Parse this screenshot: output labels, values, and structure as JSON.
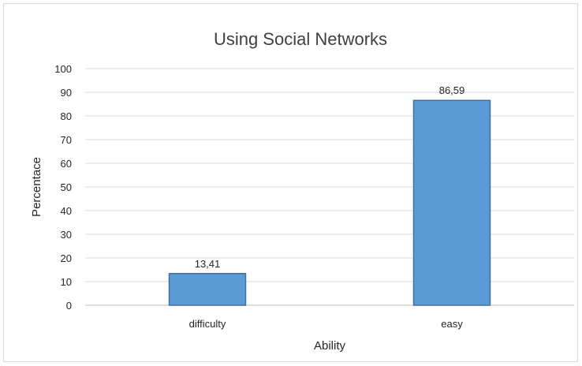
{
  "chart_data": {
    "type": "bar",
    "title": "Using Social Networks",
    "xlabel": "Ability",
    "ylabel": "Percentace",
    "categories": [
      "difficulty",
      "easy"
    ],
    "values": [
      13.41,
      86.59
    ],
    "data_labels": [
      "13,41",
      "86,59"
    ],
    "ylim": [
      0,
      100
    ],
    "yticks": [
      0,
      10,
      20,
      30,
      40,
      50,
      60,
      70,
      80,
      90,
      100
    ],
    "grid": true,
    "legend": "none",
    "bar_color": "#5b9bd5",
    "bar_edge_color": "#41719c"
  }
}
